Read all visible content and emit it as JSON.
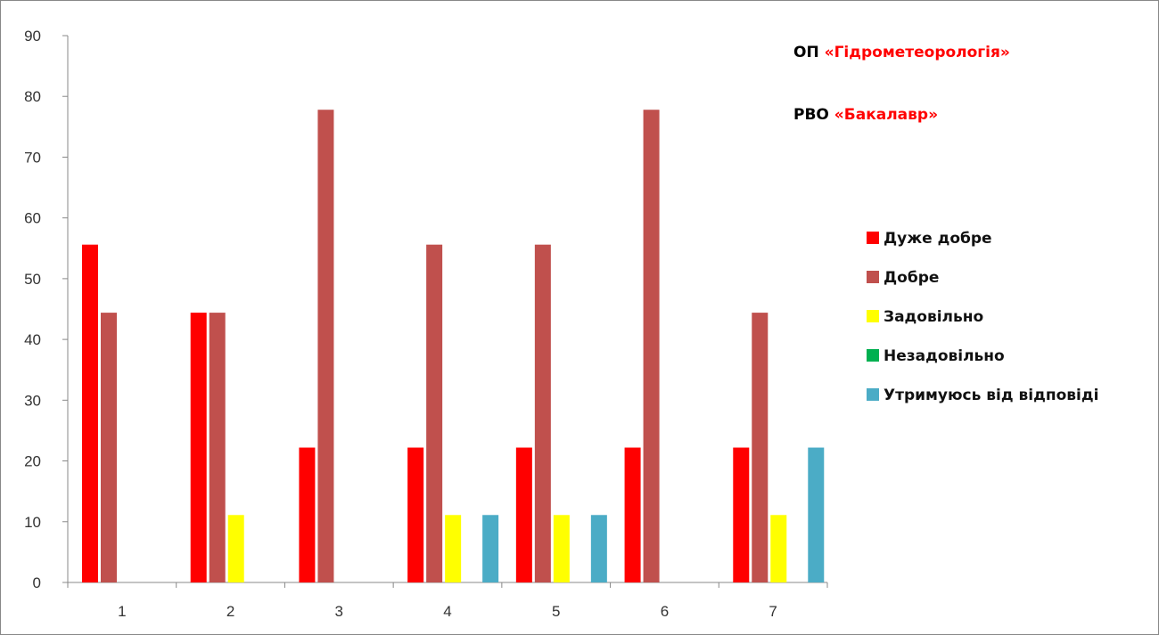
{
  "chart_data": {
    "type": "bar",
    "title": "",
    "xlabel": "",
    "ylabel": "",
    "ylim": [
      0,
      90
    ],
    "yticks": [
      0,
      10,
      20,
      30,
      40,
      50,
      60,
      70,
      80,
      90
    ],
    "grid": false,
    "legend_position": "right",
    "categories": [
      "1",
      "2",
      "3",
      "4",
      "5",
      "6",
      "7"
    ],
    "series": [
      {
        "name": "Дуже добре",
        "color": "#ff0000",
        "values": [
          55.6,
          44.4,
          22.2,
          22.2,
          22.2,
          22.2,
          22.2
        ]
      },
      {
        "name": "Добре",
        "color": "#c0504d",
        "values": [
          44.4,
          44.4,
          77.8,
          55.6,
          55.6,
          77.8,
          44.4
        ]
      },
      {
        "name": "Задовільно",
        "color": "#ffff00",
        "values": [
          0,
          11.1,
          0,
          11.1,
          11.1,
          0,
          11.1
        ]
      },
      {
        "name": "Незадовільно",
        "color": "#00b050",
        "values": [
          0,
          0,
          0,
          0,
          0,
          0,
          0
        ]
      },
      {
        "name": "Утримуюсь від відповіді",
        "color": "#4bacc6",
        "values": [
          0,
          0,
          0,
          11.1,
          11.1,
          0,
          22.2
        ]
      }
    ],
    "annotations": [
      {
        "prefix": "ОП ",
        "highlight": "«Гідрометеорологія»"
      },
      {
        "prefix": "РВО ",
        "highlight": "«Бакалавр»"
      }
    ],
    "annotation_colors": {
      "prefix": "#000000",
      "highlight": "#ff0000"
    }
  }
}
